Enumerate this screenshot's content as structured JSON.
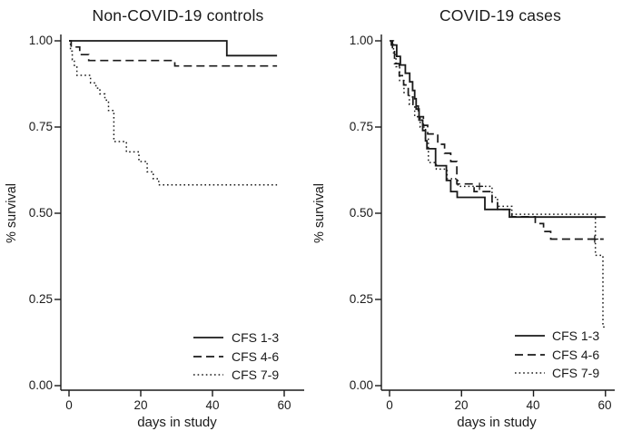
{
  "figure": {
    "background": "#ffffff",
    "line_color": "#1a1a1a",
    "text_color": "#1a1a1a"
  },
  "chart_data": [
    {
      "type": "line",
      "subtype": "kaplan-meier-survival-step",
      "title": "Non-COVID-19 controls",
      "xlabel": "days in study",
      "ylabel": "% survival",
      "xlim": [
        0,
        60
      ],
      "ylim": [
        0.0,
        1.0
      ],
      "x_ticks": [
        0,
        20,
        40,
        60
      ],
      "x_tick_labels": [
        "0",
        "20",
        "40",
        "60"
      ],
      "y_ticks": [
        1.0,
        0.75,
        0.5,
        0.25,
        0.0
      ],
      "y_tick_labels": [
        "1.00",
        "0.75",
        "0.50",
        "0.25",
        "0.00"
      ],
      "grid": false,
      "legend_position": "lower-right",
      "series": [
        {
          "name": "CFS 1-3",
          "line_style": "solid",
          "end_day": 58,
          "points": [
            [
              0,
              1.0
            ],
            [
              44,
              0.957
            ]
          ],
          "censor_marks": []
        },
        {
          "name": "CFS 4-6",
          "line_style": "dashed",
          "end_day": 58,
          "points": [
            [
              0,
              1.0
            ],
            [
              0.6,
              0.982
            ],
            [
              3,
              0.96
            ],
            [
              5.5,
              0.943
            ],
            [
              29.5,
              0.927
            ]
          ],
          "censor_marks": []
        },
        {
          "name": "CFS 7-9",
          "line_style": "dotted",
          "end_day": 58,
          "points": [
            [
              0,
              1.0
            ],
            [
              0.4,
              0.97
            ],
            [
              0.9,
              0.945
            ],
            [
              1.5,
              0.924
            ],
            [
              2.2,
              0.9
            ],
            [
              6,
              0.878
            ],
            [
              7.5,
              0.863
            ],
            [
              8.6,
              0.846
            ],
            [
              10,
              0.828
            ],
            [
              11,
              0.798
            ],
            [
              12.5,
              0.708
            ],
            [
              16,
              0.678
            ],
            [
              19.5,
              0.65
            ],
            [
              21.8,
              0.62
            ],
            [
              23.5,
              0.6
            ],
            [
              25,
              0.582
            ]
          ],
          "censor_marks": []
        }
      ]
    },
    {
      "type": "line",
      "subtype": "kaplan-meier-survival-step",
      "title": "COVID-19 cases",
      "xlabel": "days in study",
      "ylabel": "% survival",
      "xlim": [
        0,
        60
      ],
      "ylim": [
        0.0,
        1.0
      ],
      "x_ticks": [
        0,
        20,
        40,
        60
      ],
      "x_tick_labels": [
        "0",
        "20",
        "40",
        "60"
      ],
      "y_ticks": [
        1.0,
        0.75,
        0.5,
        0.25,
        0.0
      ],
      "y_tick_labels": [
        "1.00",
        "0.75",
        "0.50",
        "0.25",
        "0.00"
      ],
      "grid": false,
      "legend_position": "lower-right",
      "series": [
        {
          "name": "CFS 1-3",
          "line_style": "solid",
          "end_day": 60,
          "points": [
            [
              0,
              1.0
            ],
            [
              0.5,
              0.988
            ],
            [
              2,
              0.955
            ],
            [
              3,
              0.93
            ],
            [
              4.4,
              0.906
            ],
            [
              5.6,
              0.881
            ],
            [
              6.4,
              0.856
            ],
            [
              7,
              0.832
            ],
            [
              7.4,
              0.802
            ],
            [
              8.2,
              0.77
            ],
            [
              9.2,
              0.74
            ],
            [
              10,
              0.71
            ],
            [
              10.4,
              0.687
            ],
            [
              12.8,
              0.638
            ],
            [
              15.8,
              0.595
            ],
            [
              17,
              0.563
            ],
            [
              18.8,
              0.546
            ],
            [
              26.5,
              0.511
            ],
            [
              33.3,
              0.489
            ]
          ],
          "censor_marks": []
        },
        {
          "name": "CFS 4-6",
          "line_style": "dashed",
          "end_day": 59.5,
          "points": [
            [
              0.6,
              1.0
            ],
            [
              0.8,
              0.969
            ],
            [
              1.4,
              0.934
            ],
            [
              2.7,
              0.899
            ],
            [
              3.9,
              0.872
            ],
            [
              5.2,
              0.837
            ],
            [
              6.5,
              0.811
            ],
            [
              8,
              0.78
            ],
            [
              9.4,
              0.755
            ],
            [
              10.6,
              0.73
            ],
            [
              13.4,
              0.7
            ],
            [
              15.3,
              0.674
            ],
            [
              17,
              0.65
            ],
            [
              18.7,
              0.585
            ],
            [
              23.5,
              0.563
            ],
            [
              28.5,
              0.533
            ],
            [
              30,
              0.511
            ],
            [
              34,
              0.49
            ],
            [
              40.5,
              0.47
            ],
            [
              42.8,
              0.447
            ],
            [
              44.8,
              0.425
            ]
          ],
          "censor_marks": [
            [
              57,
              0.425
            ]
          ]
        },
        {
          "name": "CFS 7-9",
          "line_style": "dotted",
          "end_day": 59.8,
          "points": [
            [
              0.8,
              1.0
            ],
            [
              1.1,
              0.965
            ],
            [
              1.8,
              0.925
            ],
            [
              2.8,
              0.885
            ],
            [
              4,
              0.85
            ],
            [
              5.5,
              0.815
            ],
            [
              7,
              0.78
            ],
            [
              8.5,
              0.75
            ],
            [
              10,
              0.718
            ],
            [
              10.8,
              0.647
            ],
            [
              13,
              0.628
            ],
            [
              16,
              0.6
            ],
            [
              19,
              0.578
            ],
            [
              28.5,
              0.546
            ],
            [
              30,
              0.52
            ],
            [
              34,
              0.497
            ],
            [
              57.2,
              0.378
            ],
            [
              59.3,
              0.17
            ]
          ],
          "censor_marks": [
            [
              25,
              0.578
            ]
          ]
        }
      ]
    }
  ]
}
